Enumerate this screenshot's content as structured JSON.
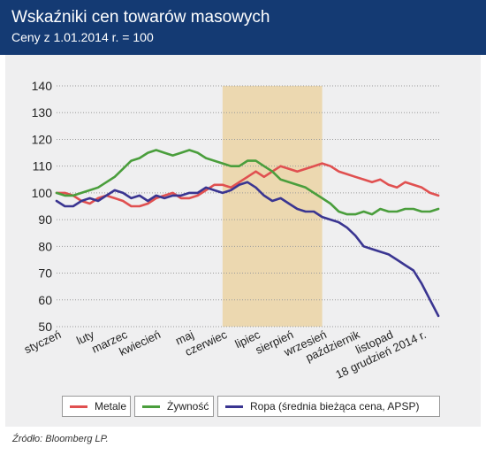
{
  "header": {
    "title": "Wskaźniki cen towarów masowych",
    "subtitle": "Ceny z 1.01.2014 r. = 100"
  },
  "source": "Źródło: Bloomberg LP.",
  "colors": {
    "header_bg": "#143a73",
    "panel_bg": "#efeff0",
    "highlight": "#ecd8b0",
    "metale": "#e05050",
    "zywnosc": "#4a9e3c",
    "ropa": "#3a3591"
  },
  "legend": {
    "items": [
      {
        "label": "Metale",
        "color": "#e05050"
      },
      {
        "label": "Żywność",
        "color": "#4a9e3c"
      },
      {
        "label": "Ropa (średnia bieżąca cena, APSP)",
        "color": "#3a3591"
      }
    ]
  },
  "chart_data": {
    "type": "line",
    "ylim": [
      50,
      140
    ],
    "yticks": [
      50,
      60,
      70,
      80,
      90,
      100,
      110,
      120,
      130,
      140
    ],
    "xlim": [
      0,
      11.55
    ],
    "xticks": [
      {
        "label": "styczeń",
        "x": 0
      },
      {
        "label": "luty",
        "x": 1
      },
      {
        "label": "marzec",
        "x": 2
      },
      {
        "label": "kwiecień",
        "x": 3
      },
      {
        "label": "maj",
        "x": 4
      },
      {
        "label": "czerwiec",
        "x": 5
      },
      {
        "label": "lipiec",
        "x": 6
      },
      {
        "label": "sierpień",
        "x": 7
      },
      {
        "label": "wrzesień",
        "x": 8
      },
      {
        "label": "październik",
        "x": 9
      },
      {
        "label": "listopad",
        "x": 10
      },
      {
        "label": "18 grudzień 2014 r.",
        "x": 11
      }
    ],
    "highlight_range": [
      5,
      8
    ],
    "grid": "horizontal dotted",
    "legend_position": "bottom",
    "series": [
      {
        "name": "Metale",
        "color": "#e05050",
        "x": [
          0,
          0.25,
          0.5,
          0.75,
          1,
          1.25,
          1.5,
          1.75,
          2,
          2.25,
          2.5,
          2.75,
          3,
          3.25,
          3.5,
          3.75,
          4,
          4.25,
          4.5,
          4.75,
          5,
          5.25,
          5.5,
          5.75,
          6,
          6.25,
          6.5,
          6.75,
          7,
          7.25,
          7.5,
          7.75,
          8,
          8.25,
          8.5,
          8.75,
          9,
          9.25,
          9.5,
          9.75,
          10,
          10.25,
          10.5,
          10.75,
          11,
          11.25,
          11.5
        ],
        "values": [
          100,
          100,
          99,
          97,
          96,
          98,
          99,
          98,
          97,
          95,
          95,
          96,
          98,
          99,
          100,
          98,
          98,
          99,
          101,
          103,
          103,
          102,
          104,
          106,
          108,
          106,
          108,
          110,
          109,
          108,
          109,
          110,
          111,
          110,
          108,
          107,
          106,
          105,
          104,
          105,
          103,
          102,
          104,
          103,
          102,
          100,
          99
        ]
      },
      {
        "name": "Żywność",
        "color": "#4a9e3c",
        "x": [
          0,
          0.25,
          0.5,
          0.75,
          1,
          1.25,
          1.5,
          1.75,
          2,
          2.25,
          2.5,
          2.75,
          3,
          3.25,
          3.5,
          3.75,
          4,
          4.25,
          4.5,
          4.75,
          5,
          5.25,
          5.5,
          5.75,
          6,
          6.25,
          6.5,
          6.75,
          7,
          7.25,
          7.5,
          7.75,
          8,
          8.25,
          8.5,
          8.75,
          9,
          9.25,
          9.5,
          9.75,
          10,
          10.25,
          10.5,
          10.75,
          11,
          11.25,
          11.5
        ],
        "values": [
          100,
          99,
          99,
          100,
          101,
          102,
          104,
          106,
          109,
          112,
          113,
          115,
          116,
          115,
          114,
          115,
          116,
          115,
          113,
          112,
          111,
          110,
          110,
          112,
          112,
          110,
          108,
          105,
          104,
          103,
          102,
          100,
          98,
          96,
          93,
          92,
          92,
          93,
          92,
          94,
          93,
          93,
          94,
          94,
          93,
          93,
          94
        ]
      },
      {
        "name": "Ropa (średnia bieżąca cena, APSP)",
        "color": "#3a3591",
        "x": [
          0,
          0.25,
          0.5,
          0.75,
          1,
          1.25,
          1.5,
          1.75,
          2,
          2.25,
          2.5,
          2.75,
          3,
          3.25,
          3.5,
          3.75,
          4,
          4.25,
          4.5,
          4.75,
          5,
          5.25,
          5.5,
          5.75,
          6,
          6.25,
          6.5,
          6.75,
          7,
          7.25,
          7.5,
          7.75,
          8,
          8.25,
          8.5,
          8.75,
          9,
          9.25,
          9.5,
          9.75,
          10,
          10.25,
          10.5,
          10.75,
          11,
          11.25,
          11.5
        ],
        "values": [
          97,
          95,
          95,
          97,
          98,
          97,
          99,
          101,
          100,
          98,
          99,
          97,
          99,
          98,
          99,
          99,
          100,
          100,
          102,
          101,
          100,
          101,
          103,
          104,
          102,
          99,
          97,
          98,
          96,
          94,
          93,
          93,
          91,
          90,
          89,
          87,
          84,
          80,
          79,
          78,
          77,
          75,
          73,
          71,
          66,
          60,
          54
        ]
      }
    ]
  }
}
